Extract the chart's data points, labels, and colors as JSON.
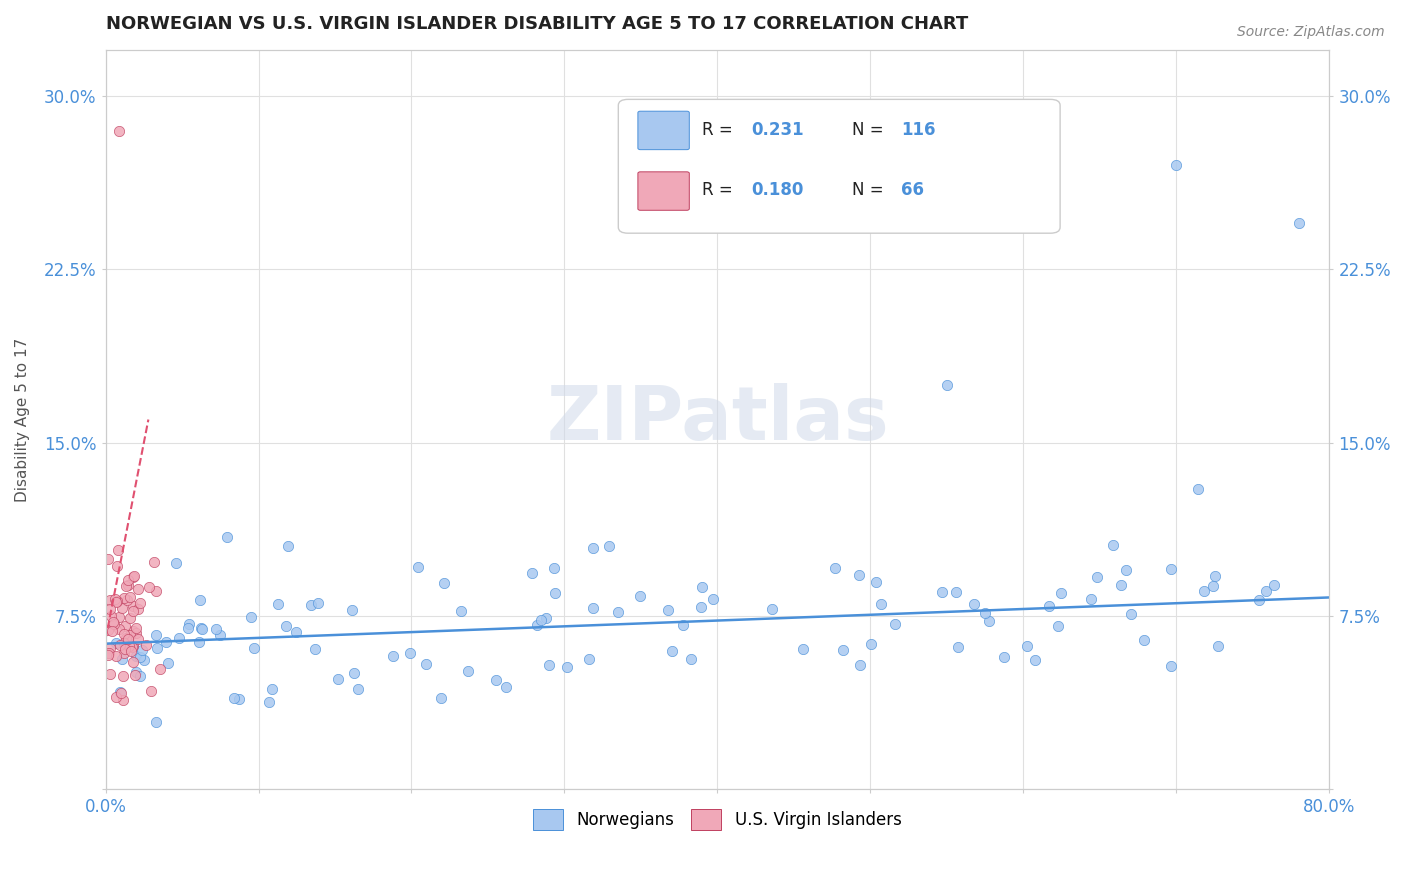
{
  "title": "NORWEGIAN VS U.S. VIRGIN ISLANDER DISABILITY AGE 5 TO 17 CORRELATION CHART",
  "source": "Source: ZipAtlas.com",
  "ylabel": "Disability Age 5 to 17",
  "xlim": [
    0.0,
    0.8
  ],
  "ylim": [
    0.0,
    0.32
  ],
  "xtick_positions": [
    0.0,
    0.1,
    0.2,
    0.3,
    0.4,
    0.5,
    0.6,
    0.7,
    0.8
  ],
  "xticklabels": [
    "0.0%",
    "",
    "",
    "",
    "",
    "",
    "",
    "",
    "80.0%"
  ],
  "ytick_positions": [
    0.0,
    0.075,
    0.15,
    0.225,
    0.3
  ],
  "yticklabels": [
    "",
    "7.5%",
    "15.0%",
    "22.5%",
    "30.0%"
  ],
  "color_norwegian": "#a8c8f0",
  "color_virgin": "#f0a8b8",
  "color_trendline_norwegian": "#4a90d9",
  "color_trendline_virgin": "#e05070",
  "background_color": "#ffffff"
}
